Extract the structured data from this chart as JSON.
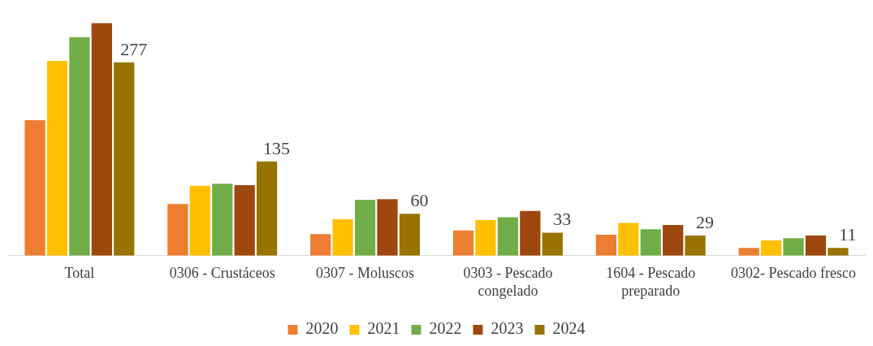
{
  "chart_data": {
    "type": "bar",
    "categories": [
      "Total",
      "0306 - Crustáceos",
      "0307 - Moluscos",
      "0303 - Pescado congelado",
      "1604 - Pescado preparado",
      "0302- Pescado fresco"
    ],
    "series": [
      {
        "name": "2020",
        "color": "#ed7d31",
        "values": [
          194,
          74,
          31,
          36,
          30,
          11
        ]
      },
      {
        "name": "2021",
        "color": "#ffc000",
        "values": [
          279,
          100,
          52,
          51,
          47,
          22
        ]
      },
      {
        "name": "2022",
        "color": "#70ad47",
        "values": [
          313,
          103,
          80,
          55,
          38,
          25
        ]
      },
      {
        "name": "2023",
        "color": "#9e480e",
        "values": [
          333,
          101,
          81,
          64,
          44,
          29
        ]
      },
      {
        "name": "2024",
        "color": "#997300",
        "values": [
          277,
          135,
          60,
          33,
          29,
          11
        ],
        "value_labels": [
          "277",
          "135",
          "60",
          "33",
          "29",
          "11"
        ]
      }
    ],
    "legend": "bottom",
    "grid": false
  }
}
